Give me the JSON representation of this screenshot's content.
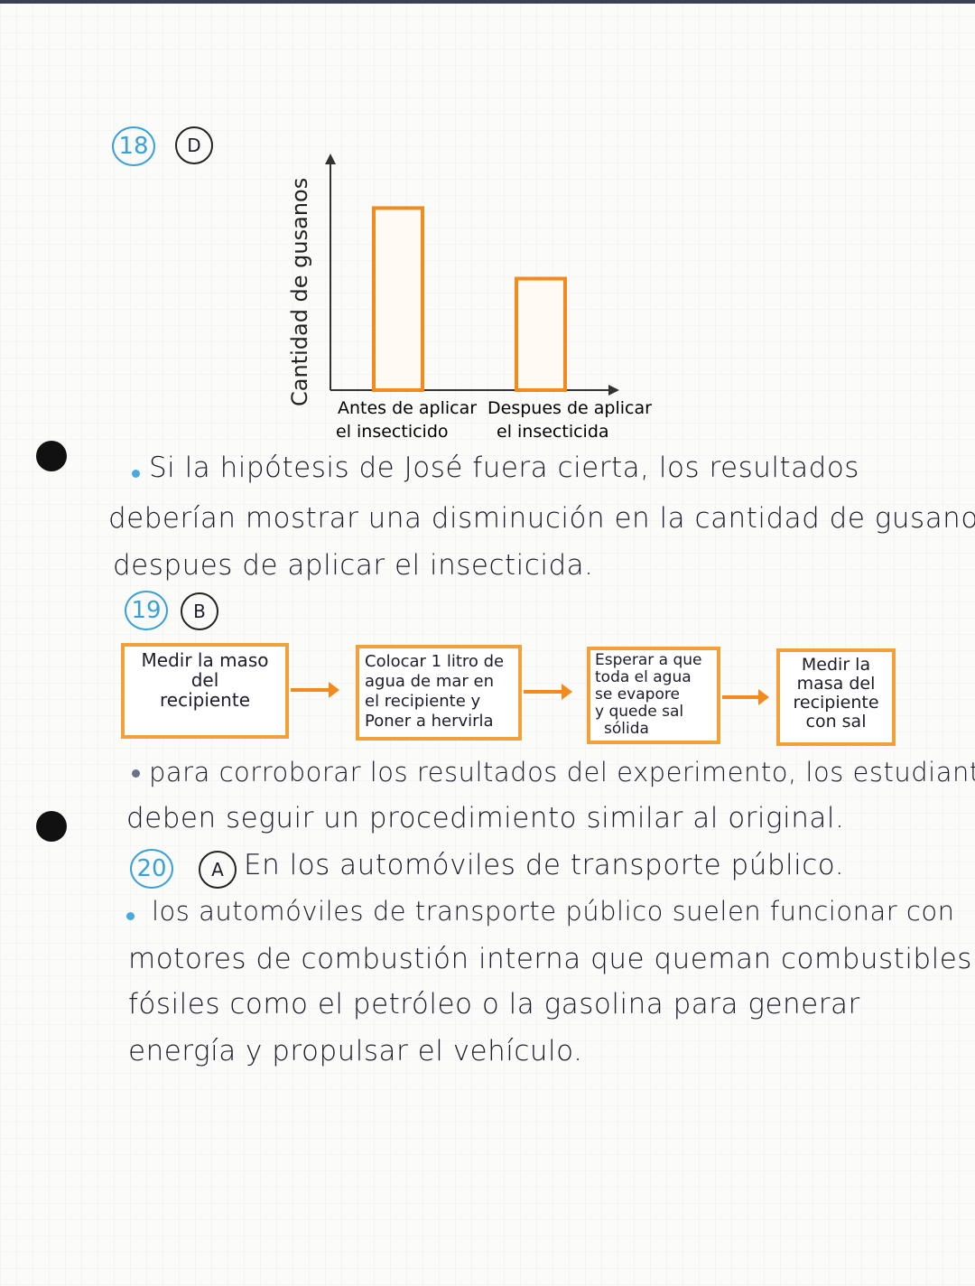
{
  "q18": {
    "number": "18",
    "answer": "D"
  },
  "chart_data": {
    "type": "bar",
    "categories": [
      "Antes de aplicar el insecticida",
      "Despues de aplicar el insecticida"
    ],
    "category_lines": [
      [
        "Antes de aplicar",
        "el insecticido"
      ],
      [
        "Despues de aplicar",
        "el insecticida"
      ]
    ],
    "values": [
      8,
      4.9
    ],
    "ylabel": "Cantidad de gusanos",
    "xlabel": "",
    "grid": false,
    "bar_color": "#f28a1e"
  },
  "q18_text": [
    "Si la hipótesis de José fuera cierta, los resultados",
    "deberían mostrar una disminución en la cantidad de gusanos",
    "despues de aplicar el insecticida."
  ],
  "q19": {
    "number": "19",
    "answer": "B"
  },
  "flow": [
    {
      "lines": [
        "Medir la maso",
        "del",
        "recipiente"
      ]
    },
    {
      "lines": [
        "Colocar 1 litro de",
        "agua de mar en",
        "el recipiente y",
        "Poner a hervirla"
      ]
    },
    {
      "lines": [
        "Esperar a que",
        "toda el agua",
        "se evapore",
        "y quede sal",
        "sólida"
      ]
    },
    {
      "lines": [
        "Medir la",
        "masa del",
        "recipiente",
        "con sal"
      ]
    }
  ],
  "q19_text": [
    "para corroborar los resultados del experimento, los estudiantes",
    "deben seguir un procedimiento similar al original."
  ],
  "q20": {
    "number": "20",
    "answer": "A",
    "answer_text": "En los automóviles de transporte público."
  },
  "q20_text": [
    "los automóviles de transporte público suelen funcionar con",
    "motores de combustión interna que queman combustibles",
    "fósiles como el petróleo o la gasolina para generar",
    "energía y propulsar el vehículo."
  ],
  "colors": {
    "question_circle": "#3aa0d8",
    "accent": "#f28a1e"
  }
}
